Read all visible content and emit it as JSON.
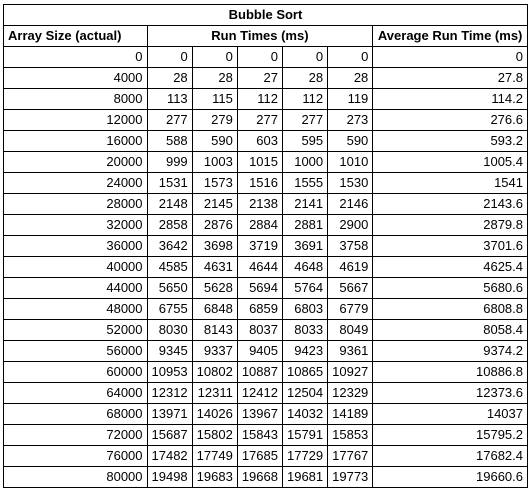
{
  "sheet": {
    "title": "Bubble Sort",
    "headers": {
      "array_size": "Array Size (actual)",
      "run_times": "Run Times (ms)",
      "average": "Average Run Time (ms)"
    },
    "rows": [
      {
        "size": "0",
        "t1": "0",
        "t2": "0",
        "t3": "0",
        "t4": "0",
        "t5": "0",
        "avg": "0"
      },
      {
        "size": "4000",
        "t1": "28",
        "t2": "28",
        "t3": "27",
        "t4": "28",
        "t5": "28",
        "avg": "27.8"
      },
      {
        "size": "8000",
        "t1": "113",
        "t2": "115",
        "t3": "112",
        "t4": "112",
        "t5": "119",
        "avg": "114.2"
      },
      {
        "size": "12000",
        "t1": "277",
        "t2": "279",
        "t3": "277",
        "t4": "277",
        "t5": "273",
        "avg": "276.6"
      },
      {
        "size": "16000",
        "t1": "588",
        "t2": "590",
        "t3": "603",
        "t4": "595",
        "t5": "590",
        "avg": "593.2"
      },
      {
        "size": "20000",
        "t1": "999",
        "t2": "1003",
        "t3": "1015",
        "t4": "1000",
        "t5": "1010",
        "avg": "1005.4"
      },
      {
        "size": "24000",
        "t1": "1531",
        "t2": "1573",
        "t3": "1516",
        "t4": "1555",
        "t5": "1530",
        "avg": "1541"
      },
      {
        "size": "28000",
        "t1": "2148",
        "t2": "2145",
        "t3": "2138",
        "t4": "2141",
        "t5": "2146",
        "avg": "2143.6"
      },
      {
        "size": "32000",
        "t1": "2858",
        "t2": "2876",
        "t3": "2884",
        "t4": "2881",
        "t5": "2900",
        "avg": "2879.8"
      },
      {
        "size": "36000",
        "t1": "3642",
        "t2": "3698",
        "t3": "3719",
        "t4": "3691",
        "t5": "3758",
        "avg": "3701.6"
      },
      {
        "size": "40000",
        "t1": "4585",
        "t2": "4631",
        "t3": "4644",
        "t4": "4648",
        "t5": "4619",
        "avg": "4625.4"
      },
      {
        "size": "44000",
        "t1": "5650",
        "t2": "5628",
        "t3": "5694",
        "t4": "5764",
        "t5": "5667",
        "avg": "5680.6"
      },
      {
        "size": "48000",
        "t1": "6755",
        "t2": "6848",
        "t3": "6859",
        "t4": "6803",
        "t5": "6779",
        "avg": "6808.8"
      },
      {
        "size": "52000",
        "t1": "8030",
        "t2": "8143",
        "t3": "8037",
        "t4": "8033",
        "t5": "8049",
        "avg": "8058.4"
      },
      {
        "size": "56000",
        "t1": "9345",
        "t2": "9337",
        "t3": "9405",
        "t4": "9423",
        "t5": "9361",
        "avg": "9374.2"
      },
      {
        "size": "60000",
        "t1": "10953",
        "t2": "10802",
        "t3": "10887",
        "t4": "10865",
        "t5": "10927",
        "avg": "10886.8"
      },
      {
        "size": "64000",
        "t1": "12312",
        "t2": "12311",
        "t3": "12412",
        "t4": "12504",
        "t5": "12329",
        "avg": "12373.6"
      },
      {
        "size": "68000",
        "t1": "13971",
        "t2": "14026",
        "t3": "13967",
        "t4": "14032",
        "t5": "14189",
        "avg": "14037"
      },
      {
        "size": "72000",
        "t1": "15687",
        "t2": "15802",
        "t3": "15843",
        "t4": "15791",
        "t5": "15853",
        "avg": "15795.2"
      },
      {
        "size": "76000",
        "t1": "17482",
        "t2": "17749",
        "t3": "17685",
        "t4": "17729",
        "t5": "17767",
        "avg": "17682.4"
      },
      {
        "size": "80000",
        "t1": "19498",
        "t2": "19683",
        "t3": "19668",
        "t4": "19681",
        "t5": "19773",
        "avg": "19660.6"
      }
    ]
  }
}
